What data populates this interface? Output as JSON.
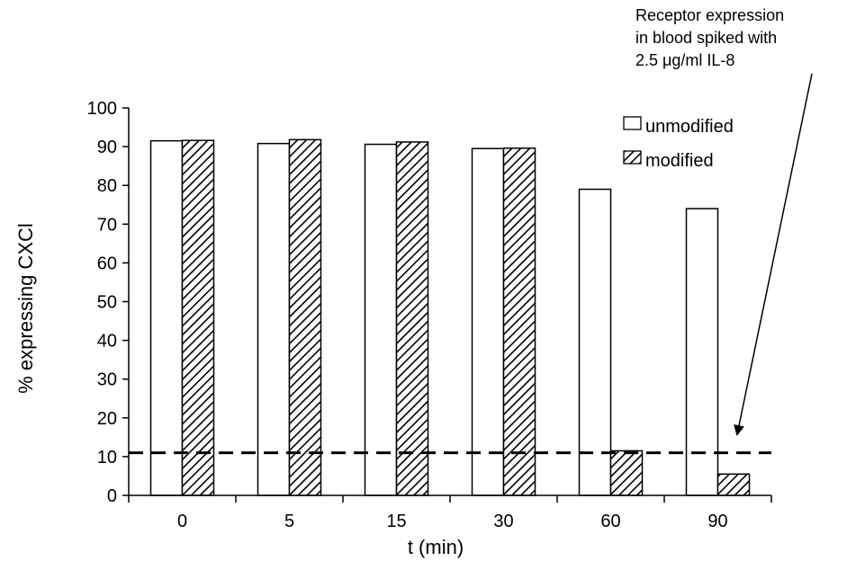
{
  "chart_data": {
    "type": "bar",
    "categories": [
      "0",
      "5",
      "15",
      "30",
      "60",
      "90"
    ],
    "series": [
      {
        "name": "unmodified",
        "values": [
          91.5,
          90.8,
          90.6,
          89.5,
          79,
          74
        ]
      },
      {
        "name": "modified",
        "values": [
          91.6,
          91.8,
          91.2,
          89.6,
          11.5,
          5.5
        ]
      }
    ],
    "xlabel": "t (min)",
    "ylabel": "% expressing CXCl",
    "ylim": [
      0,
      100
    ],
    "yticks": [
      "0",
      "10",
      "20",
      "30",
      "40",
      "50",
      "60",
      "70",
      "80",
      "90",
      "100"
    ],
    "legend_position": "top-right",
    "reference_line": {
      "y": 11,
      "style": "dashed"
    },
    "annotation": {
      "lines": [
        "Receptor expression",
        "in blood spiked with",
        "2.5 μg/ml IL-8"
      ]
    }
  }
}
